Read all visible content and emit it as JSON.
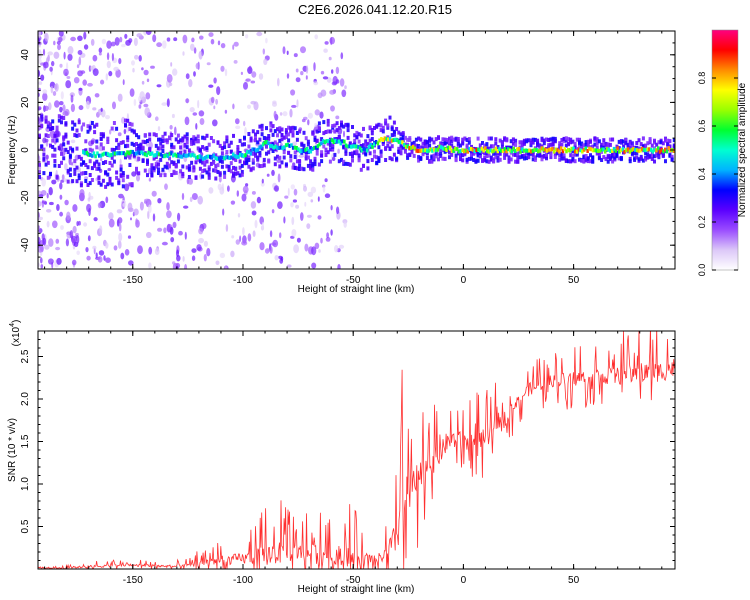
{
  "figure_title": "C2E6.2026.041.12.20.R15",
  "chart_data": [
    {
      "type": "heatmap",
      "xlabel": "Height of straight line (km)",
      "ylabel": "Frequency (Hz)",
      "xlim": [
        -193,
        96
      ],
      "ylim": [
        -50,
        50
      ],
      "x_ticks": [
        -150,
        -100,
        -50,
        0,
        50
      ],
      "x_tick_labels": [
        "-150",
        "-100",
        "-50",
        "0",
        "50"
      ],
      "y_ticks": [
        -40,
        -20,
        0,
        20,
        40
      ],
      "y_tick_labels": [
        "-40",
        "-20",
        "0",
        "20",
        "40"
      ],
      "grid": false,
      "ridge": {
        "height_km": [
          -193,
          -180,
          -170,
          -160,
          -150,
          -140,
          -130,
          -120,
          -110,
          -100,
          -95,
          -90,
          -85,
          -80,
          -75,
          -70,
          -65,
          -60,
          -55,
          -50,
          -45,
          -40,
          -35,
          -30,
          -25,
          -20,
          -15,
          -10,
          -5,
          0,
          10,
          20,
          40,
          60,
          80,
          96
        ],
        "frequency_hz": [
          1,
          0,
          -2,
          -2,
          -1,
          -2,
          -2,
          -3,
          -3,
          -2,
          0,
          3,
          1,
          2,
          0,
          0,
          3,
          4,
          3,
          1,
          0,
          3,
          5,
          4,
          1,
          0,
          0,
          1,
          0,
          0,
          0,
          0,
          0,
          0,
          0,
          0
        ]
      },
      "colorbar": {
        "label": "Normalized spectral amplitude",
        "range": [
          0,
          1
        ],
        "ticks": [
          "0.0",
          "0.2",
          "0.4",
          "0.6",
          "0.8"
        ],
        "colors": [
          "#ffffff",
          "#dcc8f8",
          "#9a4cff",
          "#5a00ff",
          "#0000ff",
          "#00b4ff",
          "#00ffd0",
          "#00ff30",
          "#9aff00",
          "#ffff00",
          "#ff8c00",
          "#ff0000",
          "#ff0080"
        ]
      }
    },
    {
      "type": "line",
      "xlabel": "Height of straight line (km)",
      "ylabel": "SNR (10 * v/v)",
      "y_scale_label": "(x10",
      "y_scale_exponent": "4",
      "xlim": [
        -193,
        96
      ],
      "ylim": [
        0,
        2.8
      ],
      "x_ticks": [
        -150,
        -100,
        -50,
        0,
        50
      ],
      "x_tick_labels": [
        "-150",
        "-100",
        "-50",
        "0",
        "50"
      ],
      "y_ticks": [
        0.5,
        1.0,
        1.5,
        2.0,
        2.5
      ],
      "y_tick_labels": [
        "0.5",
        "1.0",
        "1.5",
        "2.0",
        "2.5"
      ],
      "grid": false,
      "series": [
        {
          "name": "SNR",
          "color": "#ff3030",
          "x": [
            -193,
            -185,
            -175,
            -165,
            -155,
            -145,
            -135,
            -130,
            -125,
            -120,
            -115,
            -110,
            -105,
            -100,
            -95,
            -90,
            -85,
            -80,
            -75,
            -70,
            -65,
            -60,
            -55,
            -50,
            -45,
            -40,
            -35,
            -30,
            -28,
            -25,
            -22,
            -20,
            -18,
            -15,
            -12,
            -10,
            -8,
            -5,
            -2,
            0,
            5,
            10,
            15,
            20,
            25,
            30,
            40,
            50,
            60,
            70,
            80,
            90,
            96
          ],
          "baseline": [
            0.01,
            0.01,
            0.02,
            0.03,
            0.04,
            0.04,
            0.03,
            0.03,
            0.04,
            0.06,
            0.08,
            0.09,
            0.1,
            0.11,
            0.12,
            0.14,
            0.16,
            0.18,
            0.17,
            0.16,
            0.15,
            0.15,
            0.14,
            0.12,
            0.11,
            0.1,
            0.15,
            0.35,
            0.7,
            0.8,
            0.95,
            1.05,
            1.1,
            1.25,
            1.25,
            1.35,
            1.45,
            1.5,
            1.5,
            1.45,
            1.5,
            1.5,
            1.6,
            1.8,
            2.0,
            2.1,
            2.2,
            2.22,
            2.25,
            2.25,
            2.28,
            2.3,
            2.35
          ],
          "spread": [
            0.01,
            0.02,
            0.04,
            0.05,
            0.05,
            0.05,
            0.05,
            0.05,
            0.07,
            0.12,
            0.15,
            0.18,
            0.2,
            0.22,
            0.28,
            0.4,
            0.45,
            0.4,
            0.35,
            0.38,
            0.4,
            0.35,
            0.4,
            0.45,
            0.25,
            0.15,
            0.3,
            0.7,
            1.2,
            0.8,
            0.7,
            0.6,
            0.55,
            0.5,
            0.5,
            0.4,
            0.4,
            0.35,
            0.35,
            0.4,
            0.4,
            0.4,
            0.4,
            0.3,
            0.25,
            0.25,
            0.25,
            0.3,
            0.3,
            0.35,
            0.4,
            0.4,
            0.4
          ]
        }
      ]
    }
  ]
}
